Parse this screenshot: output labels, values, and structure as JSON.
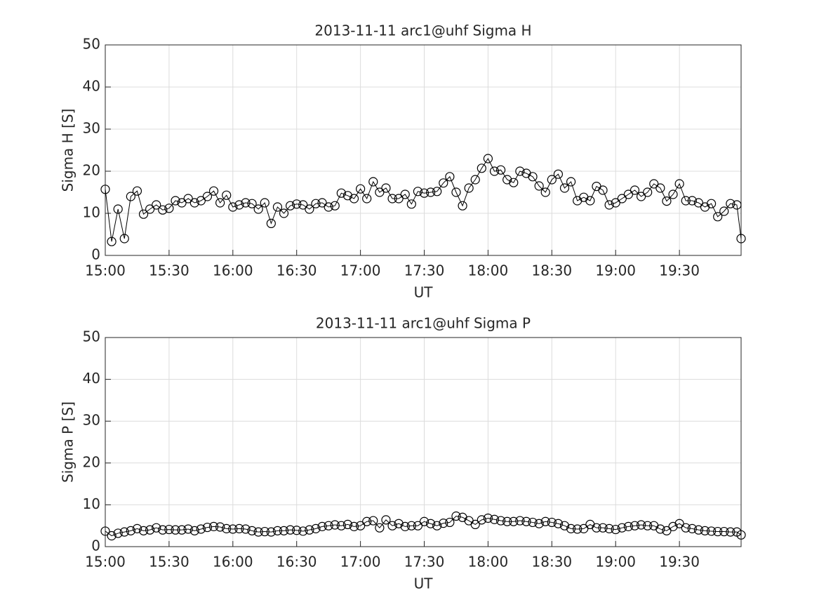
{
  "chart_data": [
    {
      "type": "line",
      "title": "2013-11-11  arc1@uhf Sigma H",
      "xlabel": "UT",
      "ylabel": "Sigma H [S]",
      "x": [
        "15:00",
        "15:03",
        "15:06",
        "15:09",
        "15:12",
        "15:15",
        "15:18",
        "15:21",
        "15:24",
        "15:27",
        "15:30",
        "15:33",
        "15:36",
        "15:39",
        "15:42",
        "15:45",
        "15:48",
        "15:51",
        "15:54",
        "15:57",
        "16:00",
        "16:03",
        "16:06",
        "16:09",
        "16:12",
        "16:15",
        "16:18",
        "16:21",
        "16:24",
        "16:27",
        "16:30",
        "16:33",
        "16:36",
        "16:39",
        "16:42",
        "16:45",
        "16:48",
        "16:51",
        "16:54",
        "16:57",
        "17:00",
        "17:03",
        "17:06",
        "17:09",
        "17:12",
        "17:15",
        "17:18",
        "17:21",
        "17:24",
        "17:27",
        "17:30",
        "17:33",
        "17:36",
        "17:39",
        "17:42",
        "17:45",
        "17:48",
        "17:51",
        "17:54",
        "17:57",
        "18:00",
        "18:03",
        "18:06",
        "18:09",
        "18:12",
        "18:15",
        "18:18",
        "18:21",
        "18:24",
        "18:27",
        "18:30",
        "18:33",
        "18:36",
        "18:39",
        "18:42",
        "18:45",
        "18:48",
        "18:51",
        "18:54",
        "18:57",
        "19:00",
        "19:03",
        "19:06",
        "19:09",
        "19:12",
        "19:15",
        "19:18",
        "19:21",
        "19:24",
        "19:27",
        "19:30",
        "19:33",
        "19:36",
        "19:39",
        "19:42",
        "19:45",
        "19:48",
        "19:51",
        "19:54",
        "19:57",
        "19:59"
      ],
      "series": [
        {
          "color": "#000000",
          "values": [
            15.7,
            3.3,
            11,
            4,
            14,
            15.3,
            9.8,
            11,
            12,
            10.8,
            11.2,
            13,
            12.5,
            13.5,
            12.5,
            13,
            14,
            15.3,
            12.5,
            14.3,
            11.5,
            12,
            12.5,
            12.3,
            11,
            12.5,
            7.6,
            11.5,
            10,
            11.8,
            12.2,
            12,
            11,
            12.3,
            12.5,
            11.5,
            11.8,
            14.8,
            14.2,
            13.5,
            15.8,
            13.5,
            17.5,
            15,
            16,
            13.5,
            13.5,
            14.5,
            12.2,
            15.2,
            14.8,
            15,
            15.2,
            17.2,
            18.7,
            15,
            11.8,
            16,
            18,
            20.7,
            23,
            20,
            20.3,
            18,
            17.3,
            20,
            19.5,
            18.7,
            16.5,
            15,
            18,
            19.3,
            16,
            17.5,
            13,
            13.8,
            13,
            16.4,
            15.5,
            12,
            12.5,
            13.5,
            14.5,
            15.5,
            14,
            15,
            17,
            16,
            12.9,
            14.5,
            17,
            13,
            13,
            12.5,
            11.5,
            12.3,
            9.2,
            10.5,
            12.3,
            12,
            4
          ]
        }
      ],
      "xlim": [
        "15:00",
        "19:59"
      ],
      "xticks": [
        "15:00",
        "15:30",
        "16:00",
        "16:30",
        "17:00",
        "17:30",
        "18:00",
        "18:30",
        "19:00",
        "19:30"
      ],
      "ylim": [
        0,
        50
      ],
      "yticks": [
        0,
        10,
        20,
        30,
        40,
        50
      ],
      "grid": true,
      "marker": "circle"
    },
    {
      "type": "line",
      "title": "2013-11-11  arc1@uhf Sigma P",
      "xlabel": "UT",
      "ylabel": "Sigma P [S]",
      "x": [
        "15:00",
        "15:03",
        "15:06",
        "15:09",
        "15:12",
        "15:15",
        "15:18",
        "15:21",
        "15:24",
        "15:27",
        "15:30",
        "15:33",
        "15:36",
        "15:39",
        "15:42",
        "15:45",
        "15:48",
        "15:51",
        "15:54",
        "15:57",
        "16:00",
        "16:03",
        "16:06",
        "16:09",
        "16:12",
        "16:15",
        "16:18",
        "16:21",
        "16:24",
        "16:27",
        "16:30",
        "16:33",
        "16:36",
        "16:39",
        "16:42",
        "16:45",
        "16:48",
        "16:51",
        "16:54",
        "16:57",
        "17:00",
        "17:03",
        "17:06",
        "17:09",
        "17:12",
        "17:15",
        "17:18",
        "17:21",
        "17:24",
        "17:27",
        "17:30",
        "17:33",
        "17:36",
        "17:39",
        "17:42",
        "17:45",
        "17:48",
        "17:51",
        "17:54",
        "17:57",
        "18:00",
        "18:03",
        "18:06",
        "18:09",
        "18:12",
        "18:15",
        "18:18",
        "18:21",
        "18:24",
        "18:27",
        "18:30",
        "18:33",
        "18:36",
        "18:39",
        "18:42",
        "18:45",
        "18:48",
        "18:51",
        "18:54",
        "18:57",
        "19:00",
        "19:03",
        "19:06",
        "19:09",
        "19:12",
        "19:15",
        "19:18",
        "19:21",
        "19:24",
        "19:27",
        "19:30",
        "19:33",
        "19:36",
        "19:39",
        "19:42",
        "19:45",
        "19:48",
        "19:51",
        "19:54",
        "19:57",
        "19:59"
      ],
      "series": [
        {
          "color": "#000000",
          "values": [
            3.7,
            2.6,
            3.2,
            3.5,
            3.8,
            4.3,
            3.8,
            4,
            4.5,
            4,
            4.1,
            4,
            4,
            4.2,
            3.8,
            4.2,
            4.6,
            4.8,
            4.7,
            4.3,
            4.2,
            4.3,
            4.2,
            3.8,
            3.5,
            3.6,
            3.5,
            3.8,
            3.8,
            4,
            3.9,
            3.7,
            4,
            4.3,
            4.8,
            5,
            5.2,
            5,
            5.3,
            4.8,
            5,
            6,
            6.2,
            4.5,
            6.4,
            5,
            5.5,
            4.8,
            5,
            5,
            6,
            5.5,
            5,
            5.6,
            5.8,
            7.3,
            7,
            6.2,
            5.3,
            6.4,
            6.8,
            6.5,
            6.2,
            6,
            6,
            6.2,
            6,
            5.8,
            5.5,
            6,
            5.8,
            5.5,
            5,
            4.3,
            4.2,
            4.3,
            5.3,
            4.5,
            4.5,
            4.3,
            4.1,
            4.5,
            4.8,
            5,
            5.2,
            5,
            5,
            4.2,
            3.8,
            4.8,
            5.5,
            4.5,
            4.3,
            4,
            3.8,
            3.7,
            3.6,
            3.6,
            3.5,
            3.5,
            2.8
          ]
        }
      ],
      "xlim": [
        "15:00",
        "19:59"
      ],
      "xticks": [
        "15:00",
        "15:30",
        "16:00",
        "16:30",
        "17:00",
        "17:30",
        "18:00",
        "18:30",
        "19:00",
        "19:30"
      ],
      "ylim": [
        0,
        50
      ],
      "yticks": [
        0,
        10,
        20,
        30,
        40,
        50
      ],
      "grid": true,
      "marker": "circle"
    }
  ]
}
